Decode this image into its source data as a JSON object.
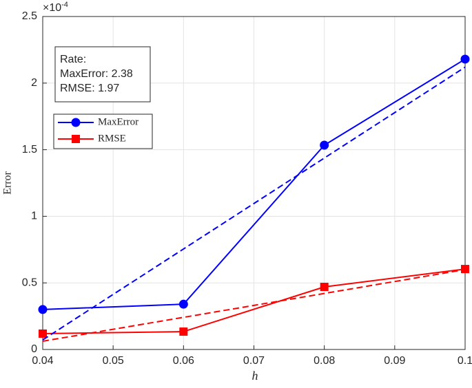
{
  "chart_data": {
    "type": "line",
    "x_label": "h",
    "y_label": "Error",
    "y_exponent": {
      "base": "×10",
      "power": "-4"
    },
    "xlim": [
      0.04,
      0.1
    ],
    "xticks": [
      0.04,
      0.05,
      0.06,
      0.07,
      0.08,
      0.09,
      0.1
    ],
    "ylim": [
      0,
      2.5
    ],
    "yticks": [
      0,
      0.5,
      1,
      1.5,
      2,
      2.5
    ],
    "grid": true,
    "legend_position": "upper left",
    "annotation": [
      "Rate:",
      "MaxError: 2.38",
      "RMSE: 1.97"
    ],
    "series": [
      {
        "name": "MaxError",
        "color": "#0000ff",
        "marker": "circle",
        "dashed": false,
        "x": [
          0.04,
          0.06,
          0.08,
          0.1
        ],
        "values": [
          0.3,
          0.34,
          1.534,
          2.18
        ]
      },
      {
        "name": "RMSE",
        "color": "#ff0000",
        "marker": "square",
        "dashed": false,
        "x": [
          0.04,
          0.06,
          0.08,
          0.1
        ],
        "values": [
          0.119,
          0.134,
          0.47,
          0.604
        ]
      },
      {
        "color": "#0000ff",
        "dashed": true,
        "x": [
          0.04,
          0.1
        ],
        "values": [
          0.072,
          2.12
        ]
      },
      {
        "color": "#ff0000",
        "dashed": true,
        "x": [
          0.04,
          0.1
        ],
        "values": [
          0.062,
          0.6
        ]
      }
    ]
  }
}
